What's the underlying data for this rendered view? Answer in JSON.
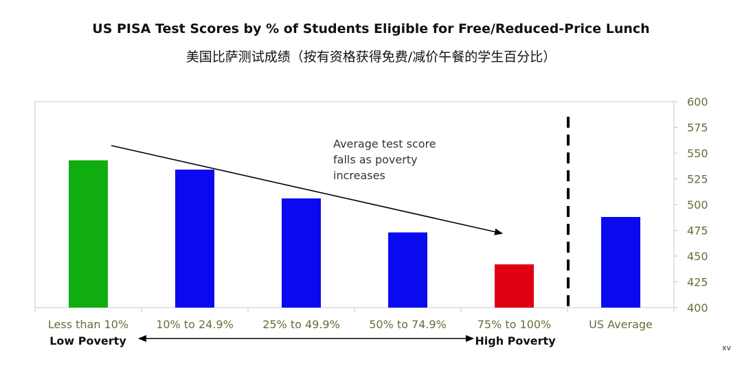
{
  "title": "US PISA Test Scores by % of Students Eligible for Free/Reduced-Price Lunch",
  "subtitle": "美国比萨测试成绩（按有资格获得免费/减价午餐的学生百分比）",
  "corner_text": "xv",
  "annotation_lines": [
    "Average test score",
    "falls as poverty",
    "increases"
  ],
  "poverty_labels": {
    "low": "Low Poverty",
    "high": "High Poverty"
  },
  "colors": {
    "green": "#10ad10",
    "blue": "#0a0af0",
    "red": "#e00012",
    "axis": "#6b6a3a"
  },
  "chart_data": {
    "type": "bar",
    "title": "US PISA Test Scores by % of Students Eligible for Free/Reduced-Price Lunch",
    "categories": [
      "Less than 10%",
      "10% to 24.9%",
      "25% to 49.9%",
      "50% to 74.9%",
      "75% to 100%",
      "US Average"
    ],
    "values": [
      543,
      534,
      506,
      473,
      442,
      488
    ],
    "bar_colors": [
      "#10ad10",
      "#0a0af0",
      "#0a0af0",
      "#0a0af0",
      "#e00012",
      "#0a0af0"
    ],
    "ylim": [
      400,
      600
    ],
    "yticks": [
      400,
      425,
      450,
      475,
      500,
      525,
      550,
      575,
      600
    ],
    "y_axis_side": "right",
    "grid": false,
    "legend": "none",
    "separator_after_category": 4
  }
}
